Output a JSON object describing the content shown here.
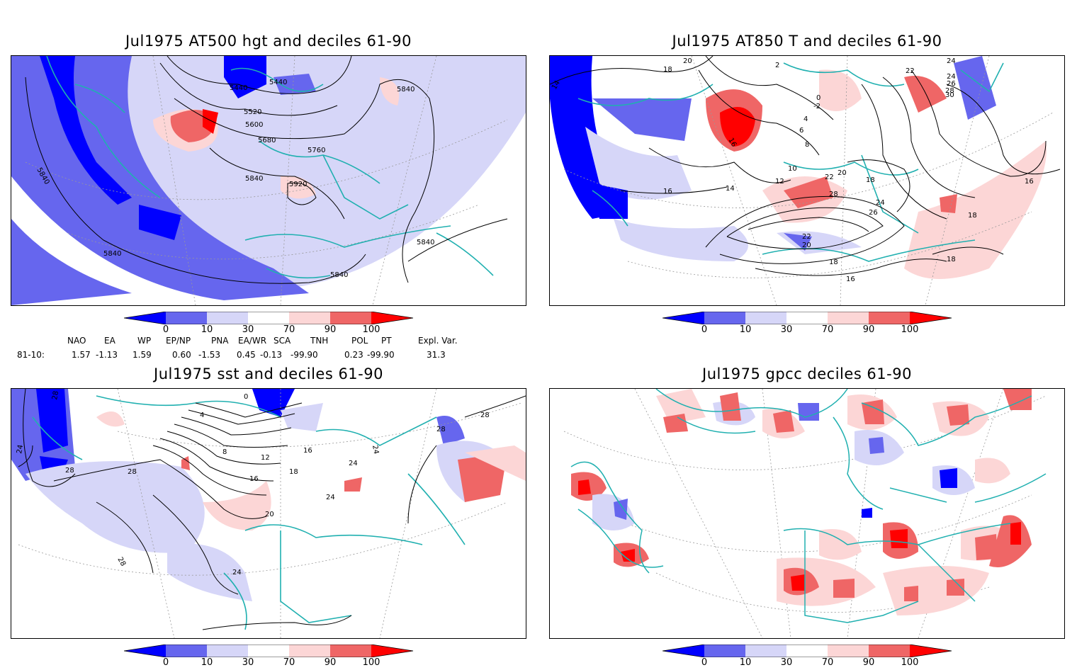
{
  "panels": {
    "hgt": {
      "title": "Jul1975 AT500 hgt and deciles 61-90",
      "contour_labels": [
        "5440",
        "5440",
        "5520",
        "5600",
        "5680",
        "5760",
        "5840",
        "5920",
        "5840",
        "5840",
        "5840",
        "5840",
        "5840"
      ]
    },
    "t850": {
      "title": "Jul1975 AT850 T and deciles 61-90",
      "contour_labels": [
        "14",
        "18",
        "20",
        "2",
        "0",
        "-2",
        "4",
        "6",
        "8",
        "16",
        "10",
        "12",
        "14",
        "16",
        "22",
        "20",
        "18",
        "28",
        "26",
        "24",
        "22",
        "20",
        "18",
        "16",
        "16",
        "18",
        "18",
        "22",
        "24",
        "26",
        "28",
        "30",
        "24"
      ]
    },
    "sst": {
      "title": "Jul1975 sst and deciles 61-90",
      "contour_labels": [
        "28",
        "24",
        "28",
        "28",
        "0",
        "4",
        "8",
        "12",
        "16",
        "20",
        "24",
        "16",
        "18",
        "24",
        "24",
        "28",
        "28",
        "28",
        "24"
      ]
    },
    "gpcc": {
      "title": "Jul1975 gpcc deciles 61-90"
    }
  },
  "colorbar": {
    "ticks": [
      "0",
      "10",
      "30",
      "70",
      "90",
      "100"
    ],
    "colors": [
      "#0000ff",
      "#6666ee",
      "#d6d6f8",
      "#ffffff",
      "#fcd6d6",
      "#ef6666",
      "#ff0000"
    ]
  },
  "indices": {
    "headers": [
      "NAO",
      "EA",
      "WP",
      "EP/NP",
      "PNA",
      "EA/WR",
      "SCA",
      "TNH",
      "POL",
      "PT",
      "Expl. Var."
    ],
    "row_label": "81-10:",
    "values": [
      "1.57",
      "-1.13",
      "1.59",
      "0.60",
      "-1.53",
      "0.45",
      "-0.13",
      "-99.90",
      "0.23",
      "-99.90",
      "31.3"
    ]
  }
}
